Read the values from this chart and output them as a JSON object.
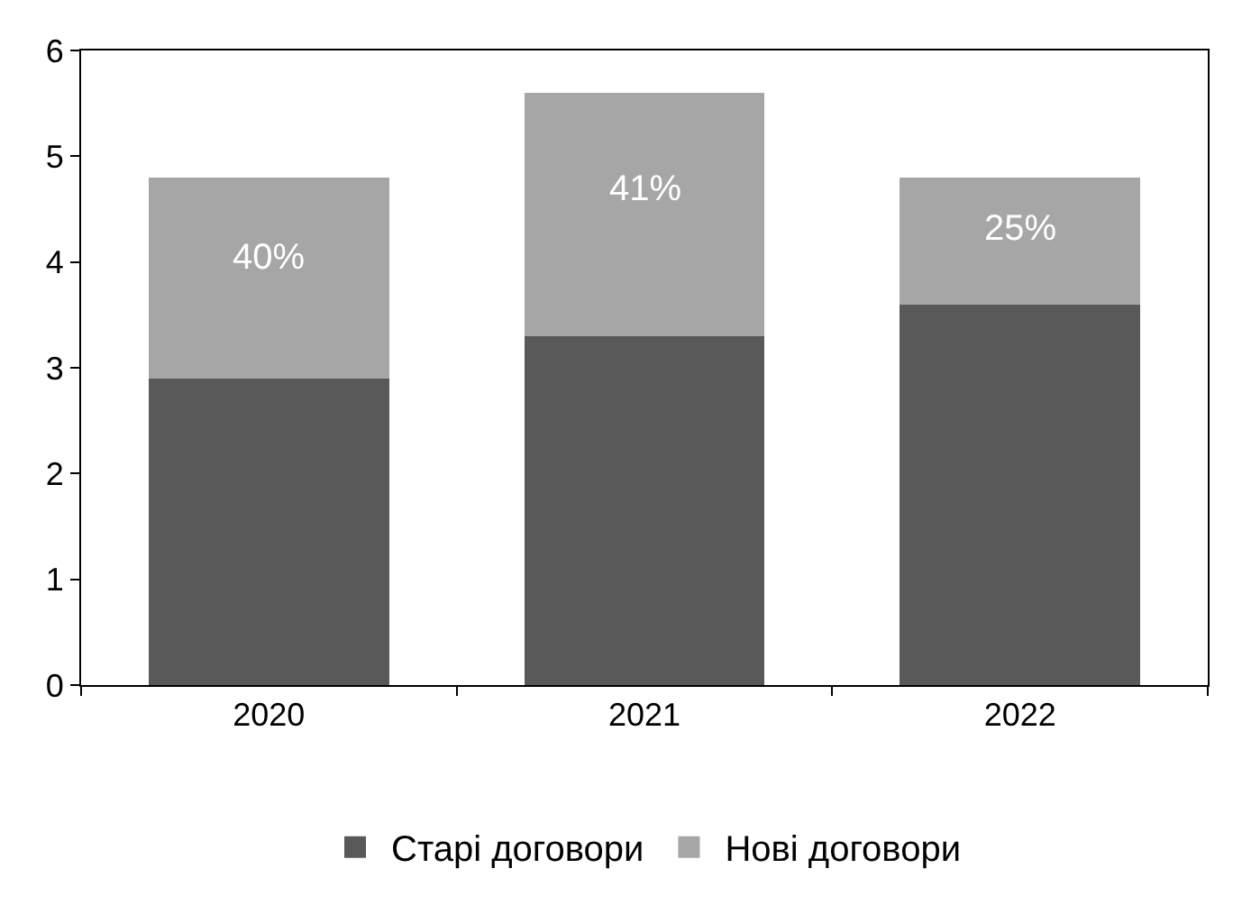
{
  "chart_data": {
    "type": "bar",
    "stacked": true,
    "categories": [
      "2020",
      "2021",
      "2022"
    ],
    "series": [
      {
        "name": "Старі договори",
        "color": "#595959",
        "values": [
          2.9,
          3.3,
          3.6
        ]
      },
      {
        "name": "Нові договори",
        "color": "#a6a6a6",
        "values": [
          1.9,
          2.3,
          1.2
        ]
      }
    ],
    "annotations": [
      "40%",
      "41%",
      "25%"
    ],
    "ylim": [
      0,
      6
    ],
    "yticks": [
      0,
      1,
      2,
      3,
      4,
      5,
      6
    ],
    "grid": false,
    "legend": "bottom"
  }
}
